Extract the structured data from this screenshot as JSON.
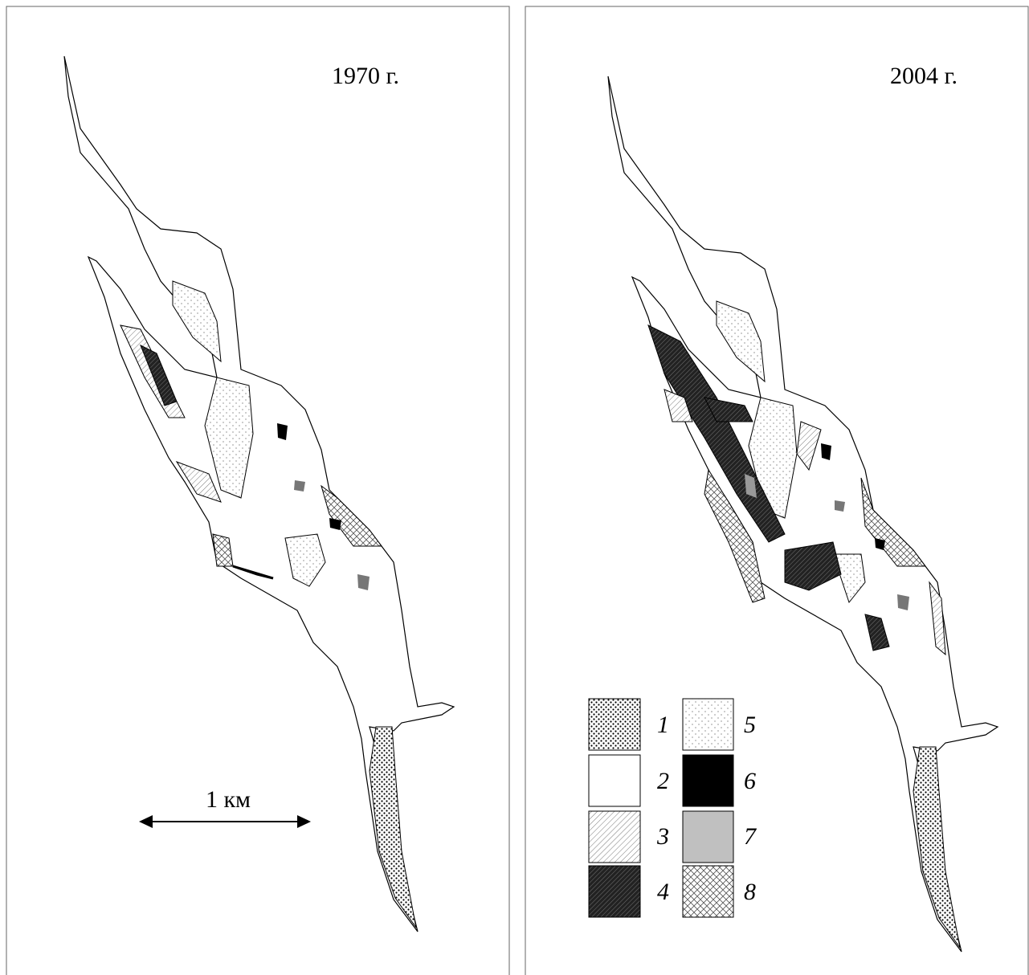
{
  "panels": [
    {
      "year_label": "1970 г."
    },
    {
      "year_label": "2004 г."
    }
  ],
  "scale_bar": {
    "label": "1 км"
  },
  "legend": {
    "items": [
      {
        "label": "1"
      },
      {
        "label": "2"
      },
      {
        "label": "3"
      },
      {
        "label": "4"
      },
      {
        "label": "5"
      },
      {
        "label": "6"
      },
      {
        "label": "7"
      },
      {
        "label": "8"
      }
    ]
  }
}
